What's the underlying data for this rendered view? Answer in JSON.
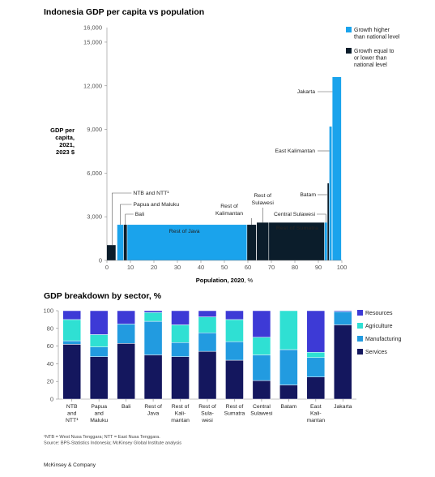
{
  "colors": {
    "growth_higher": "#1aa3ec",
    "growth_equal_lower": "#0b1d2b",
    "resources": "#3d3ad6",
    "agriculture": "#2fe0d3",
    "manufacturing": "#229be0",
    "services": "#14175e"
  },
  "chart_data": [
    {
      "type": "bar",
      "subtype": "marimekko",
      "title": "Indonesia GDP per capita vs population",
      "xlabel": "Population, 2020, %",
      "ylabel": [
        "GDP per",
        "capita,",
        "2021,",
        "2023 $"
      ],
      "xlim": [
        0,
        100
      ],
      "ylim": [
        0,
        16000
      ],
      "xticks": [
        "0",
        "10",
        "20",
        "30",
        "40",
        "50",
        "60",
        "70",
        "80",
        "90",
        "100"
      ],
      "yticks": [
        "0",
        "3,000",
        "6,000",
        "9,000",
        "12,000",
        "15,000"
      ],
      "ytick_label_top": "16,000",
      "legend": [
        {
          "key": "higher",
          "label": [
            "Growth higher",
            "than national level"
          ]
        },
        {
          "key": "lower",
          "label": [
            "Growth equal to",
            "or lower than",
            "national level"
          ]
        }
      ],
      "legend_position": "top-right",
      "bars": [
        {
          "name": "NTB and NTT",
          "x0": 0,
          "x1": 3.7,
          "value": 1050,
          "growth": "lower",
          "label": "NTB and NTT¹"
        },
        {
          "name": "Papua and Maluku",
          "x0": 4.4,
          "x1": 7.0,
          "value": 2450,
          "growth": "higher",
          "label": "Papua and Maluku"
        },
        {
          "name": "Bali",
          "x0": 7.2,
          "x1": 8.5,
          "value": 2450,
          "growth": "lower",
          "label": "Bali"
        },
        {
          "name": "Rest of Java",
          "x0": 8.7,
          "x1": 59.5,
          "value": 2450,
          "growth": "higher",
          "label": "Rest of Java"
        },
        {
          "name": "Rest of Kalimantan",
          "x0": 59.7,
          "x1": 63.5,
          "value": 2450,
          "growth": "lower",
          "label": "Rest of Kalimantan"
        },
        {
          "name": "Rest of Sulawesi",
          "x0": 63.8,
          "x1": 68.8,
          "value": 2600,
          "growth": "lower",
          "label": "Rest of Sulawesi"
        },
        {
          "name": "Rest of Sumatra",
          "x0": 69.0,
          "x1": 92.5,
          "value": 2600,
          "growth": "lower",
          "label": "Rest of Sumatra"
        },
        {
          "name": "Central Sulawesi",
          "x0": 92.7,
          "x1": 93.7,
          "value": 2600,
          "growth": "higher",
          "label": "Central Sulawesi"
        },
        {
          "name": "Batam",
          "x0": 93.9,
          "x1": 94.5,
          "value": 5300,
          "growth": "lower",
          "label": "Batam"
        },
        {
          "name": "East Kalimantan",
          "x0": 94.7,
          "x1": 95.7,
          "value": 9200,
          "growth": "higher",
          "label": "East Kalimantan"
        },
        {
          "name": "Jakarta",
          "x0": 96.0,
          "x1": 99.7,
          "value": 12600,
          "growth": "higher",
          "label": "Jakarta"
        }
      ]
    },
    {
      "type": "bar",
      "subtype": "stacked-100",
      "title": "GDP breakdown by sector, %",
      "ylim": [
        0,
        100
      ],
      "yticks": [
        "0",
        "20",
        "40",
        "60",
        "80",
        "100"
      ],
      "categories": [
        [
          "NTB",
          "and",
          "NTT¹"
        ],
        [
          "Papua",
          "and",
          "Maluku"
        ],
        [
          "Bali"
        ],
        [
          "Rest of",
          "Java"
        ],
        [
          "Rest of",
          "Kali-",
          "mantan"
        ],
        [
          "Rest of",
          "Sula-",
          "wesi"
        ],
        [
          "Rest of",
          "Sumatra"
        ],
        [
          "Central",
          "Sulawesi"
        ],
        [
          "Batam"
        ],
        [
          "East",
          "Kali-",
          "mantan"
        ],
        [
          "Jakarta"
        ]
      ],
      "series": [
        {
          "name": "Services",
          "key": "services",
          "values": [
            62,
            48,
            63,
            50,
            48,
            54,
            44,
            21,
            16,
            25,
            84
          ]
        },
        {
          "name": "Manufacturing",
          "key": "manufacturing",
          "values": [
            4,
            11,
            22,
            38,
            16,
            21,
            21,
            29,
            40,
            22,
            15
          ]
        },
        {
          "name": "Agriculture",
          "key": "agriculture",
          "values": [
            24,
            14,
            0,
            10,
            20,
            18,
            25,
            20,
            44,
            6,
            0
          ]
        },
        {
          "name": "Resources",
          "key": "resources",
          "values": [
            10,
            27,
            15,
            2,
            16,
            7,
            10,
            30,
            0,
            47,
            1
          ]
        }
      ],
      "legend_order": [
        "resources",
        "agriculture",
        "manufacturing",
        "services"
      ],
      "legend_position": "right"
    }
  ],
  "footnote": [
    "¹NTB = West Nusa Tenggara; NTT = East Nusa Tenggara.",
    "Source: BPS-Statistics Indonesia; McKinsey Global Institute analysis"
  ],
  "brand": "McKinsey & Company"
}
